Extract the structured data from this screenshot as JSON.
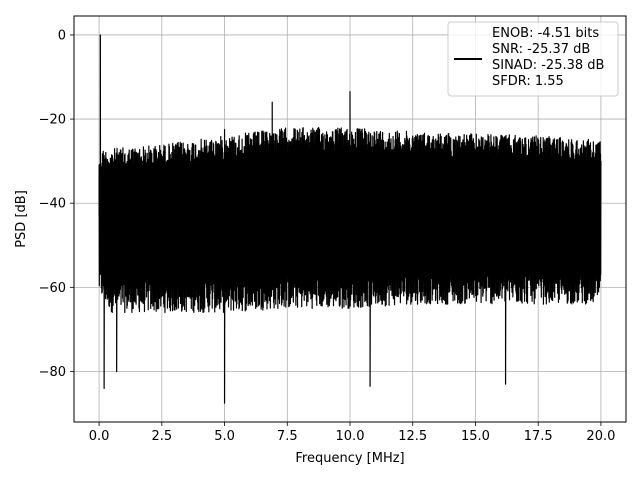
{
  "chart_data": {
    "type": "line",
    "title": "",
    "xlabel": "Frequency [MHz]",
    "ylabel": "PSD [dB]",
    "xlim": [
      -1.0,
      21.0
    ],
    "ylim": [
      -92.0,
      4.5
    ],
    "grid": true,
    "legend_placement": "top-right",
    "x_ticks": [
      0.0,
      2.5,
      5.0,
      7.5,
      10.0,
      12.5,
      15.0,
      17.5,
      20.0
    ],
    "x_tick_labels": [
      "0.0",
      "2.5",
      "5.0",
      "7.5",
      "10.0",
      "12.5",
      "15.0",
      "17.5",
      "20.0"
    ],
    "y_ticks": [
      0,
      -20,
      -40,
      -60,
      -80
    ],
    "y_tick_labels": [
      "0",
      "−20",
      "−40",
      "−60",
      "−80"
    ],
    "series": [
      {
        "name": "ENOB: -4.51 bits\nSNR: -25.37 dB\nSINAD: -25.38 dB\nSFDR: 1.55",
        "color": "#000000",
        "x_range": [
          0.0,
          20.0
        ],
        "noise_envelope": {
          "x": [
            0.0,
            0.5,
            2.5,
            5.0,
            7.5,
            10.0,
            12.5,
            15.0,
            17.5,
            20.0
          ],
          "upper": [
            -27,
            -27,
            -26,
            -24,
            -22,
            -22,
            -23,
            -23.5,
            -24,
            -25
          ],
          "lower": [
            -62,
            -66,
            -66,
            -66,
            -65,
            -65,
            -64,
            -64,
            -64,
            -64
          ]
        },
        "peaks": [
          {
            "x": 0.05,
            "y": 0.0
          },
          {
            "x": 5.0,
            "y": -22.5
          },
          {
            "x": 6.9,
            "y": -16.0
          },
          {
            "x": 10.0,
            "y": -13.5
          }
        ],
        "dips": [
          {
            "x": 0.2,
            "y": -84.0
          },
          {
            "x": 0.7,
            "y": -80.0
          },
          {
            "x": 5.0,
            "y": -87.5
          },
          {
            "x": 10.8,
            "y": -83.5
          },
          {
            "x": 16.2,
            "y": -83.0
          }
        ]
      }
    ],
    "legend_lines": [
      "ENOB: -4.51 bits",
      "SNR: -25.37 dB",
      "SINAD: -25.38 dB",
      "SFDR: 1.55"
    ]
  }
}
